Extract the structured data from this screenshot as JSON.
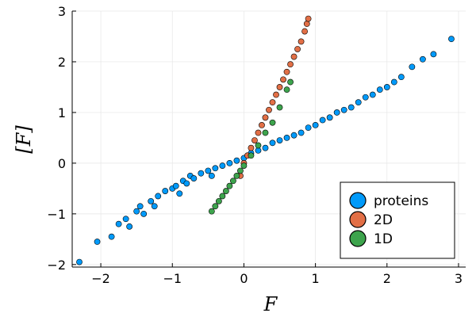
{
  "chart_data": {
    "type": "scatter",
    "title": "",
    "xlabel": "F",
    "ylabel": "[F]",
    "xlim": [
      -2.4,
      3.1
    ],
    "ylim": [
      -2.05,
      3.0
    ],
    "xticks": [
      -2,
      -1,
      0,
      1,
      2,
      3
    ],
    "yticks": [
      -2,
      -1,
      0,
      1,
      2,
      3
    ],
    "xtick_labels": [
      "−2",
      "−1",
      "0",
      "1",
      "2",
      "3"
    ],
    "ytick_labels": [
      "−2",
      "−1",
      "0",
      "1",
      "2",
      "3"
    ],
    "grid": true,
    "legend_position": "bottom-right",
    "series": [
      {
        "name": "proteins",
        "color": "#009AFA",
        "x": [
          -2.3,
          -2.05,
          -1.85,
          -1.75,
          -1.65,
          -1.6,
          -1.5,
          -1.45,
          -1.4,
          -1.3,
          -1.25,
          -1.2,
          -1.1,
          -1.0,
          -0.95,
          -0.9,
          -0.85,
          -0.8,
          -0.75,
          -0.7,
          -0.6,
          -0.5,
          -0.45,
          -0.4,
          -0.3,
          -0.2,
          -0.1,
          0.0,
          0.1,
          0.2,
          0.3,
          0.4,
          0.5,
          0.6,
          0.7,
          0.8,
          0.9,
          1.0,
          1.1,
          1.2,
          1.3,
          1.4,
          1.5,
          1.6,
          1.7,
          1.8,
          1.9,
          2.0,
          2.1,
          2.2,
          2.35,
          2.5,
          2.65,
          2.9
        ],
        "y": [
          -1.95,
          -1.55,
          -1.45,
          -1.2,
          -1.1,
          -1.25,
          -0.95,
          -0.85,
          -1.0,
          -0.75,
          -0.85,
          -0.65,
          -0.55,
          -0.5,
          -0.45,
          -0.6,
          -0.35,
          -0.4,
          -0.25,
          -0.3,
          -0.2,
          -0.15,
          -0.25,
          -0.1,
          -0.05,
          0.0,
          0.05,
          0.1,
          0.2,
          0.25,
          0.3,
          0.4,
          0.45,
          0.5,
          0.55,
          0.6,
          0.7,
          0.75,
          0.85,
          0.9,
          1.0,
          1.05,
          1.1,
          1.2,
          1.3,
          1.35,
          1.45,
          1.5,
          1.6,
          1.7,
          1.9,
          2.05,
          2.15,
          2.45
        ]
      },
      {
        "name": "2D",
        "color": "#E26F46",
        "x": [
          -0.05,
          0.0,
          0.05,
          0.1,
          0.15,
          0.2,
          0.25,
          0.3,
          0.35,
          0.4,
          0.45,
          0.5,
          0.55,
          0.6,
          0.65,
          0.7,
          0.75,
          0.8,
          0.85,
          0.88,
          0.9
        ],
        "y": [
          -0.25,
          0.0,
          0.15,
          0.3,
          0.45,
          0.6,
          0.75,
          0.9,
          1.05,
          1.2,
          1.35,
          1.5,
          1.65,
          1.8,
          1.95,
          2.1,
          2.25,
          2.4,
          2.6,
          2.75,
          2.85
        ]
      },
      {
        "name": "1D",
        "color": "#3DA44D",
        "x": [
          -0.45,
          -0.4,
          -0.35,
          -0.3,
          -0.25,
          -0.2,
          -0.15,
          -0.1,
          -0.05,
          0.0,
          0.1,
          0.2,
          0.3,
          0.4,
          0.5,
          0.6,
          0.65
        ],
        "y": [
          -0.95,
          -0.85,
          -0.75,
          -0.65,
          -0.55,
          -0.45,
          -0.35,
          -0.25,
          -0.15,
          -0.05,
          0.15,
          0.35,
          0.6,
          0.8,
          1.1,
          1.45,
          1.6
        ]
      }
    ]
  }
}
